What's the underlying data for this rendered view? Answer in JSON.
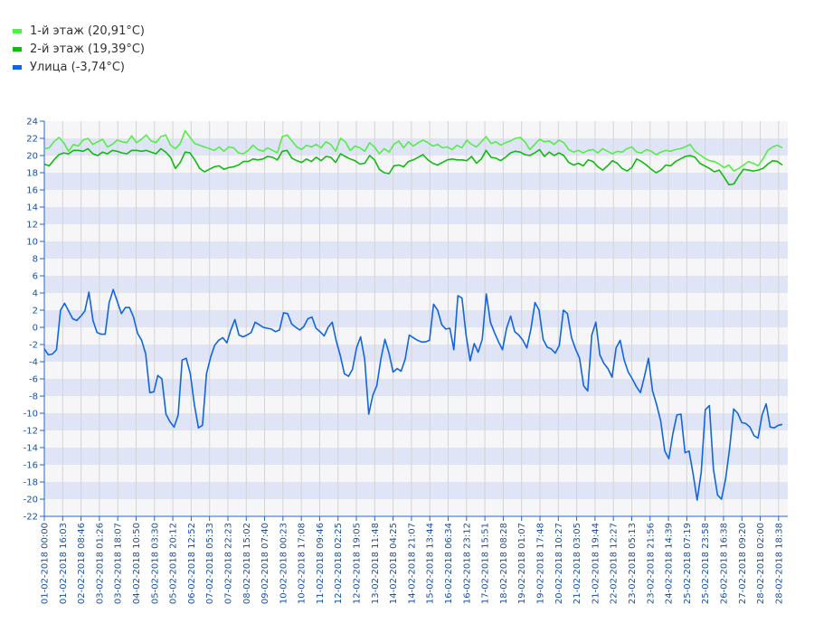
{
  "chart_data": {
    "type": "line",
    "title": "",
    "xlabel": "",
    "ylabel": "",
    "ylim": [
      -22,
      24
    ],
    "grid": true,
    "legend_position": "top-left",
    "y_ticks": [
      "24",
      "22",
      "20",
      "18",
      "16",
      "14",
      "12",
      "10",
      "8",
      "6",
      "4",
      "2",
      "0",
      "-2",
      "-4",
      "-6",
      "-8",
      "-10",
      "-12",
      "-14",
      "-16",
      "-18",
      "-20",
      "-22"
    ],
    "x_ticks": [
      "01-02-2018 00:00",
      "01-02-2018 16:03",
      "02-02-2018 08:46",
      "03-02-2018 01:26",
      "03-02-2018 18:07",
      "04-02-2018 10:50",
      "05-02-2018 03:30",
      "05-02-2018 20:12",
      "06-02-2018 12:52",
      "07-02-2018 05:33",
      "07-02-2018 22:23",
      "08-02-2018 15:02",
      "09-02-2018 07:40",
      "10-02-2018 00:23",
      "10-02-2018 17:08",
      "11-02-2018 09:46",
      "12-02-2018 02:25",
      "12-02-2018 19:05",
      "13-02-2018 11:48",
      "14-02-2018 04:25",
      "14-02-2018 21:07",
      "15-02-2018 13:44",
      "16-02-2018 06:34",
      "16-02-2018 23:12",
      "17-02-2018 15:51",
      "18-02-2018 08:28",
      "19-02-2018 01:07",
      "19-02-2018 17:48",
      "20-02-2018 10:27",
      "21-02-2018 03:05",
      "21-02-2018 19:44",
      "22-02-2018 12:27",
      "23-02-2018 05:13",
      "23-02-2018 21:56",
      "24-02-2018 14:39",
      "25-02-2018 07:19",
      "25-02-2018 23:58",
      "26-02-2018 16:38",
      "27-02-2018 09:20",
      "28-02-2018 02:00",
      "28-02-2018 18:38"
    ],
    "series": [
      {
        "name": "1-й этаж (20,91°C)",
        "color": "#55ee44",
        "values": [
          20.8,
          20.9,
          21.6,
          22.1,
          21.5,
          20.5,
          21.3,
          21.1,
          21.8,
          22.0,
          21.3,
          21.6,
          21.9,
          21.0,
          21.3,
          21.8,
          21.6,
          21.5,
          22.3,
          21.5,
          21.9,
          22.4,
          21.7,
          21.5,
          22.2,
          22.4,
          21.2,
          20.8,
          21.4,
          22.9,
          22.1,
          21.4,
          21.2,
          21.0,
          20.8,
          20.6,
          21.0,
          20.5,
          21.0,
          20.9,
          20.3,
          20.2,
          20.6,
          21.2,
          20.7,
          20.5,
          20.9,
          20.6,
          20.3,
          22.2,
          22.4,
          21.7,
          21.0,
          20.7,
          21.2,
          21.0,
          21.3,
          20.9,
          21.6,
          21.3,
          20.5,
          22.0,
          21.6,
          20.6,
          21.1,
          20.9,
          20.5,
          21.5,
          21.0,
          20.2,
          20.8,
          20.4,
          21.3,
          21.7,
          20.9,
          21.6,
          21.1,
          21.5,
          21.8,
          21.5,
          21.1,
          21.3,
          20.9,
          21.0,
          20.7,
          21.2,
          20.9,
          21.8,
          21.3,
          21.0,
          21.6,
          22.2,
          21.4,
          21.6,
          21.2,
          21.5,
          21.7,
          22.0,
          22.1,
          21.6,
          20.7,
          21.3,
          21.9,
          21.6,
          21.7,
          21.3,
          21.8,
          21.5,
          20.7,
          20.4,
          20.6,
          20.3,
          20.6,
          20.7,
          20.3,
          20.8,
          20.5,
          20.2,
          20.5,
          20.4,
          20.8,
          21.0,
          20.4,
          20.3,
          20.7,
          20.5,
          20.1,
          20.4,
          20.6,
          20.5,
          20.7,
          20.8,
          21.0,
          21.3,
          20.5,
          20.1,
          19.7,
          19.4,
          19.3,
          19.0,
          18.6,
          18.9,
          18.2,
          18.5,
          18.9,
          19.3,
          19.1,
          18.8,
          19.6,
          20.6,
          21.0,
          21.2,
          20.9
        ]
      },
      {
        "name": "2-й этаж (19,39°C)",
        "color": "#11bb11",
        "values": [
          19.0,
          18.8,
          19.5,
          20.1,
          20.3,
          20.2,
          20.6,
          20.6,
          20.5,
          20.8,
          20.2,
          20.0,
          20.4,
          20.2,
          20.6,
          20.5,
          20.3,
          20.2,
          20.6,
          20.6,
          20.5,
          20.6,
          20.4,
          20.2,
          20.8,
          20.4,
          19.8,
          18.5,
          19.2,
          20.4,
          20.3,
          19.5,
          18.5,
          18.1,
          18.4,
          18.7,
          18.8,
          18.4,
          18.6,
          18.7,
          18.9,
          19.3,
          19.3,
          19.6,
          19.5,
          19.6,
          19.9,
          19.8,
          19.5,
          20.5,
          20.6,
          19.7,
          19.4,
          19.2,
          19.6,
          19.3,
          19.8,
          19.4,
          19.9,
          19.8,
          19.2,
          20.2,
          19.9,
          19.6,
          19.4,
          19.0,
          19.1,
          20.0,
          19.5,
          18.4,
          18.0,
          17.9,
          18.8,
          18.9,
          18.7,
          19.3,
          19.5,
          19.8,
          20.1,
          19.5,
          19.1,
          18.9,
          19.2,
          19.5,
          19.6,
          19.5,
          19.5,
          19.4,
          19.9,
          19.1,
          19.6,
          20.6,
          19.8,
          19.7,
          19.4,
          19.8,
          20.3,
          20.5,
          20.4,
          20.1,
          20.0,
          20.3,
          20.7,
          19.9,
          20.4,
          20.0,
          20.3,
          20.0,
          19.2,
          18.9,
          19.1,
          18.8,
          19.5,
          19.3,
          18.7,
          18.3,
          18.8,
          19.4,
          19.1,
          18.5,
          18.2,
          18.6,
          19.6,
          19.3,
          18.9,
          18.4,
          18.0,
          18.3,
          18.9,
          18.8,
          19.3,
          19.6,
          19.9,
          20.0,
          19.8,
          19.1,
          18.8,
          18.5,
          18.1,
          18.3,
          17.5,
          16.6,
          16.7,
          17.6,
          18.4,
          18.3,
          18.2,
          18.3,
          18.5,
          19.0,
          19.4,
          19.3,
          18.9
        ]
      },
      {
        "name": "Улица (-3,74°C)",
        "color": "#1166dd",
        "values": [
          -2.5,
          -3.2,
          -3.1,
          -2.6,
          2.0,
          2.8,
          1.9,
          1.0,
          0.8,
          1.3,
          1.9,
          4.1,
          0.8,
          -0.6,
          -0.8,
          -0.8,
          2.9,
          4.4,
          3.0,
          1.6,
          2.3,
          2.3,
          1.2,
          -0.7,
          -1.5,
          -3.1,
          -7.6,
          -7.5,
          -5.6,
          -6.0,
          -10.1,
          -11.0,
          -11.6,
          -10.2,
          -3.8,
          -3.6,
          -5.4,
          -9.0,
          -11.7,
          -11.4,
          -5.4,
          -3.5,
          -2.1,
          -1.5,
          -1.2,
          -1.8,
          -0.3,
          0.9,
          -0.9,
          -1.1,
          -0.9,
          -0.6,
          0.6,
          0.3,
          0.0,
          -0.1,
          -0.2,
          -0.5,
          -0.3,
          1.7,
          1.6,
          0.4,
          0.0,
          -0.3,
          0.1,
          1.0,
          1.2,
          -0.1,
          -0.5,
          -1.0,
          0.0,
          0.6,
          -1.6,
          -3.3,
          -5.4,
          -5.7,
          -4.9,
          -2.4,
          -1.1,
          -3.7,
          -10.1,
          -7.9,
          -6.8,
          -3.7,
          -1.4,
          -3.0,
          -5.2,
          -4.8,
          -5.1,
          -3.7,
          -0.9,
          -1.2,
          -1.5,
          -1.7,
          -1.7,
          -1.5,
          2.7,
          2.0,
          0.3,
          -0.2,
          -0.1,
          -2.6,
          3.7,
          3.4,
          -0.9,
          -3.9,
          -1.9,
          -2.9,
          -1.4,
          3.9,
          0.6,
          -0.6,
          -1.7,
          -2.6,
          -0.1,
          1.3,
          -0.5,
          -0.9,
          -1.5,
          -2.4,
          -0.2,
          2.9,
          2.0,
          -1.4,
          -2.3,
          -2.5,
          -3.0,
          -2.1,
          2.0,
          1.6,
          -1.2,
          -2.5,
          -3.6,
          -6.8,
          -7.4,
          -0.9,
          0.6,
          -3.2,
          -4.2,
          -4.8,
          -5.8,
          -2.4,
          -1.5,
          -3.8,
          -5.2,
          -6.0,
          -6.9,
          -7.6,
          -5.7,
          -3.6,
          -7.4,
          -9.0,
          -10.9,
          -14.4,
          -15.3,
          -12.4,
          -10.2,
          -10.1,
          -14.6,
          -14.4,
          -17.1,
          -20.1,
          -16.9,
          -9.6,
          -9.1,
          -16.5,
          -19.5,
          -20.0,
          -17.7,
          -14.1,
          -9.5,
          -10.0,
          -11.1,
          -11.2,
          -11.6,
          -12.6,
          -12.9,
          -10.2,
          -8.9,
          -11.6,
          -11.7,
          -11.4,
          -11.3
        ]
      }
    ]
  }
}
